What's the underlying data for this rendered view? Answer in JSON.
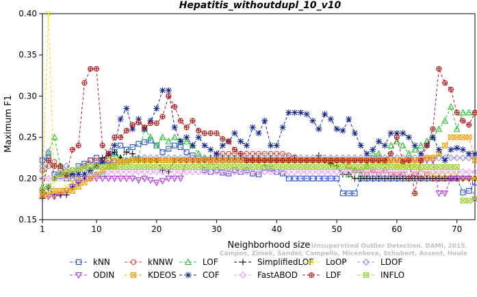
{
  "chart_data": {
    "type": "line",
    "title": "Hepatitis_withoutdupl_10_v10",
    "xlabel": "Neighborhood size",
    "ylabel": "Maximum F1",
    "xlim": [
      1,
      73
    ],
    "ylim": [
      0.15,
      0.4
    ],
    "x_ticks": [
      1,
      10,
      20,
      30,
      40,
      50,
      60,
      70
    ],
    "y_ticks": [
      "0.15",
      "0.20",
      "0.25",
      "0.30",
      "0.35",
      "0.40"
    ],
    "grid": false,
    "legend_position": "bottom",
    "credit": {
      "line1": "Unsupervised Outlier Detection. DAMI, 2015.",
      "line2": "Campos, Zimek, Sander, Campello, Micenkova, Schubert, Assent, Houle"
    },
    "series": [
      {
        "name": "kNN",
        "color": "#1f4fd0",
        "marker": "square",
        "dash": "4,3",
        "values": [
          0.222,
          0.225,
          0.205,
          0.203,
          0.208,
          0.203,
          0.215,
          0.218,
          0.222,
          0.225,
          0.222,
          0.222,
          0.232,
          0.24,
          0.235,
          0.238,
          0.242,
          0.244,
          0.246,
          0.24,
          0.232,
          0.236,
          0.24,
          0.238,
          0.232,
          0.228,
          0.222,
          0.21,
          0.208,
          0.21,
          0.207,
          0.206,
          0.21,
          0.208,
          0.21,
          0.206,
          0.205,
          0.213,
          0.212,
          0.208,
          0.206,
          0.2,
          0.2,
          0.2,
          0.2,
          0.2,
          0.2,
          0.2,
          0.2,
          0.2,
          0.182,
          0.182,
          0.182,
          0.2,
          0.2,
          0.2,
          0.2,
          0.2,
          0.2,
          0.2,
          0.2,
          0.2,
          0.2,
          0.2,
          0.2,
          0.2,
          0.2,
          0.2,
          0.2,
          0.2,
          0.183,
          0.185,
          0.195
        ]
      },
      {
        "name": "kNNW",
        "color": "#e53a2c",
        "marker": "circle",
        "dash": "4,3",
        "values": [
          0.21,
          0.215,
          0.22,
          0.21,
          0.2,
          0.205,
          0.21,
          0.215,
          0.222,
          0.222,
          0.222,
          0.222,
          0.222,
          0.222,
          0.222,
          0.222,
          0.222,
          0.222,
          0.222,
          0.222,
          0.222,
          0.222,
          0.222,
          0.222,
          0.222,
          0.222,
          0.222,
          0.222,
          0.222,
          0.228,
          0.23,
          0.23,
          0.23,
          0.23,
          0.23,
          0.23,
          0.23,
          0.23,
          0.23,
          0.23,
          0.23,
          0.228,
          0.226,
          0.222,
          0.222,
          0.222,
          0.222,
          0.222,
          0.222,
          0.222,
          0.222,
          0.215,
          0.21,
          0.21,
          0.205,
          0.21,
          0.205,
          0.21,
          0.205,
          0.205,
          0.205,
          0.2,
          0.205,
          0.2,
          0.205,
          0.2,
          0.2,
          0.2,
          0.2,
          0.2,
          0.2,
          0.2,
          0.2
        ]
      },
      {
        "name": "LOF",
        "color": "#22c02a",
        "marker": "triangle",
        "dash": "4,3",
        "values": [
          0.19,
          0.232,
          0.25,
          0.215,
          0.2,
          0.2,
          0.2,
          0.2,
          0.205,
          0.205,
          0.205,
          0.215,
          0.23,
          0.225,
          0.222,
          0.222,
          0.225,
          0.26,
          0.25,
          0.24,
          0.25,
          0.245,
          0.25,
          0.245,
          0.245,
          0.24,
          0.23,
          0.225,
          0.22,
          0.222,
          0.222,
          0.222,
          0.222,
          0.222,
          0.222,
          0.222,
          0.222,
          0.222,
          0.222,
          0.222,
          0.222,
          0.222,
          0.222,
          0.222,
          0.222,
          0.222,
          0.222,
          0.222,
          0.222,
          0.222,
          0.222,
          0.205,
          0.21,
          0.205,
          0.215,
          0.23,
          0.23,
          0.22,
          0.24,
          0.245,
          0.24,
          0.23,
          0.235,
          0.24,
          0.245,
          0.25,
          0.26,
          0.27,
          0.287,
          0.26,
          0.28,
          0.28,
          0.28
        ]
      },
      {
        "name": "SimplifiedLOF",
        "color": "#000000",
        "marker": "plus",
        "dash": "4,3",
        "values": [
          0.176,
          0.188,
          0.18,
          0.18,
          0.18,
          0.19,
          0.195,
          0.2,
          0.21,
          0.215,
          0.225,
          0.228,
          0.232,
          0.225,
          0.232,
          0.23,
          0.222,
          0.222,
          0.222,
          0.222,
          0.21,
          0.208,
          0.222,
          0.222,
          0.222,
          0.222,
          0.222,
          0.222,
          0.225,
          0.225,
          0.225,
          0.225,
          0.225,
          0.225,
          0.222,
          0.225,
          0.225,
          0.222,
          0.225,
          0.222,
          0.222,
          0.222,
          0.225,
          0.222,
          0.222,
          0.222,
          0.228,
          0.222,
          0.218,
          0.215,
          0.205,
          0.205,
          0.2,
          0.2,
          0.2,
          0.2,
          0.2,
          0.2,
          0.2,
          0.2,
          0.2,
          0.2,
          0.2,
          0.2,
          0.2,
          0.2,
          0.2,
          0.2,
          0.2,
          0.2,
          0.2,
          0.2,
          0.2
        ]
      },
      {
        "name": "LoOP",
        "color": "#f4dc00",
        "marker": "x",
        "dash": "4,3",
        "values": [
          0.185,
          0.4,
          0.178,
          0.182,
          0.19,
          0.195,
          0.2,
          0.205,
          0.21,
          0.215,
          0.22,
          0.225,
          0.222,
          0.222,
          0.222,
          0.222,
          0.222,
          0.222,
          0.222,
          0.222,
          0.222,
          0.222,
          0.222,
          0.222,
          0.222,
          0.222,
          0.222,
          0.222,
          0.222,
          0.222,
          0.222,
          0.222,
          0.222,
          0.222,
          0.222,
          0.222,
          0.222,
          0.222,
          0.222,
          0.222,
          0.222,
          0.222,
          0.222,
          0.222,
          0.222,
          0.222,
          0.222,
          0.222,
          0.222,
          0.222,
          0.222,
          0.222,
          0.222,
          0.222,
          0.22,
          0.22,
          0.22,
          0.22,
          0.22,
          0.215,
          0.215,
          0.215,
          0.215,
          0.21,
          0.205,
          0.205,
          0.205,
          0.205,
          0.205,
          0.205,
          0.2,
          0.2,
          0.2
        ]
      },
      {
        "name": "LDOF",
        "color": "#8c8ce0",
        "marker": "diamond",
        "dash": "4,3",
        "values": [
          0.215,
          0.232,
          0.205,
          0.21,
          0.215,
          0.21,
          0.21,
          0.21,
          0.215,
          0.22,
          0.218,
          0.218,
          0.22,
          0.22,
          0.222,
          0.225,
          0.225,
          0.225,
          0.225,
          0.225,
          0.225,
          0.225,
          0.225,
          0.225,
          0.225,
          0.225,
          0.225,
          0.225,
          0.225,
          0.225,
          0.225,
          0.225,
          0.225,
          0.225,
          0.225,
          0.225,
          0.225,
          0.225,
          0.225,
          0.225,
          0.225,
          0.225,
          0.225,
          0.225,
          0.225,
          0.225,
          0.225,
          0.225,
          0.225,
          0.225,
          0.225,
          0.225,
          0.225,
          0.225,
          0.225,
          0.225,
          0.225,
          0.225,
          0.225,
          0.225,
          0.225,
          0.225,
          0.225,
          0.225,
          0.225,
          0.225,
          0.225,
          0.225,
          0.225,
          0.225,
          0.225,
          0.225,
          0.225
        ]
      },
      {
        "name": "ODIN",
        "color": "#b030e0",
        "marker": "triangle-down",
        "dash": "4,3",
        "values": [
          0.18,
          0.178,
          0.178,
          0.18,
          0.185,
          0.19,
          0.195,
          0.2,
          0.2,
          0.2,
          0.2,
          0.2,
          0.2,
          0.2,
          0.2,
          0.2,
          0.198,
          0.2,
          0.198,
          0.195,
          0.197,
          0.2,
          0.2,
          0.2,
          0.222,
          0.222,
          0.222,
          0.222,
          0.222,
          0.222,
          0.222,
          0.222,
          0.222,
          0.222,
          0.222,
          0.222,
          0.222,
          0.222,
          0.222,
          0.222,
          0.222,
          0.222,
          0.222,
          0.222,
          0.222,
          0.222,
          0.222,
          0.222,
          0.222,
          0.222,
          0.222,
          0.222,
          0.222,
          0.222,
          0.222,
          0.222,
          0.222,
          0.222,
          0.222,
          0.222,
          0.222,
          0.222,
          0.222,
          0.222,
          0.222,
          0.222,
          0.182,
          0.182,
          0.2,
          0.2,
          0.2,
          0.2,
          0.175
        ]
      },
      {
        "name": "KDEOS",
        "color": "#f0a000",
        "marker": "square-x",
        "dash": "4,3",
        "values": [
          0.18,
          0.18,
          0.185,
          0.185,
          0.185,
          0.185,
          0.19,
          0.195,
          0.2,
          0.205,
          0.21,
          0.215,
          0.215,
          0.22,
          0.22,
          0.222,
          0.222,
          0.222,
          0.222,
          0.222,
          0.222,
          0.222,
          0.222,
          0.222,
          0.222,
          0.222,
          0.222,
          0.222,
          0.222,
          0.222,
          0.222,
          0.222,
          0.222,
          0.222,
          0.222,
          0.222,
          0.222,
          0.222,
          0.222,
          0.222,
          0.222,
          0.222,
          0.222,
          0.222,
          0.222,
          0.222,
          0.222,
          0.222,
          0.222,
          0.222,
          0.222,
          0.222,
          0.222,
          0.222,
          0.222,
          0.222,
          0.222,
          0.222,
          0.222,
          0.222,
          0.222,
          0.222,
          0.222,
          0.222,
          0.225,
          0.225,
          0.23,
          0.24,
          0.25,
          0.25,
          0.25,
          0.25,
          0.222
        ]
      },
      {
        "name": "COF",
        "color": "#10238c",
        "marker": "star",
        "dash": "4,3",
        "values": [
          0.185,
          0.19,
          0.2,
          0.205,
          0.205,
          0.205,
          0.205,
          0.205,
          0.21,
          0.215,
          0.22,
          0.23,
          0.24,
          0.272,
          0.285,
          0.26,
          0.272,
          0.26,
          0.27,
          0.285,
          0.307,
          0.307,
          0.262,
          0.245,
          0.25,
          0.24,
          0.25,
          0.24,
          0.235,
          0.23,
          0.24,
          0.245,
          0.255,
          0.245,
          0.24,
          0.262,
          0.255,
          0.27,
          0.24,
          0.24,
          0.262,
          0.28,
          0.28,
          0.28,
          0.278,
          0.27,
          0.26,
          0.278,
          0.272,
          0.26,
          0.258,
          0.272,
          0.255,
          0.24,
          0.23,
          0.235,
          0.245,
          0.24,
          0.255,
          0.255,
          0.255,
          0.25,
          0.24,
          0.23,
          0.24,
          0.25,
          0.235,
          0.222,
          0.235,
          0.237,
          0.235,
          0.23,
          0.23
        ]
      },
      {
        "name": "FastABOD",
        "color": "#ee9aee",
        "marker": "diamond",
        "dash": "4,3",
        "values": [
          0.2,
          0.2,
          0.2,
          0.2,
          0.2,
          0.2,
          0.2,
          0.2,
          0.205,
          0.205,
          0.205,
          0.208,
          0.208,
          0.208,
          0.208,
          0.208,
          0.208,
          0.208,
          0.208,
          0.208,
          0.208,
          0.208,
          0.208,
          0.208,
          0.208,
          0.208,
          0.208,
          0.208,
          0.208,
          0.208,
          0.208,
          0.208,
          0.208,
          0.208,
          0.208,
          0.208,
          0.208,
          0.208,
          0.208,
          0.208,
          0.208,
          0.208,
          0.208,
          0.208,
          0.208,
          0.208,
          0.208,
          0.208,
          0.208,
          0.208,
          0.208,
          0.208,
          0.208,
          0.208,
          0.208,
          0.208,
          0.208,
          0.208,
          0.208,
          0.208,
          0.208,
          0.208,
          0.208,
          0.208,
          0.208,
          0.208,
          0.208,
          0.208,
          0.208,
          0.208,
          0.208,
          0.208,
          0.208
        ]
      },
      {
        "name": "LDF",
        "color": "#b01818",
        "marker": "circle-plus",
        "dash": "4,3",
        "values": [
          0.185,
          0.222,
          0.215,
          0.215,
          0.205,
          0.235,
          0.24,
          0.316,
          0.333,
          0.333,
          0.24,
          0.23,
          0.25,
          0.25,
          0.258,
          0.265,
          0.268,
          0.262,
          0.267,
          0.267,
          0.275,
          0.3,
          0.287,
          0.27,
          0.262,
          0.27,
          0.258,
          0.255,
          0.255,
          0.255,
          0.248,
          0.245,
          0.235,
          0.23,
          0.222,
          0.222,
          0.222,
          0.222,
          0.222,
          0.222,
          0.222,
          0.222,
          0.222,
          0.222,
          0.222,
          0.222,
          0.222,
          0.222,
          0.222,
          0.222,
          0.222,
          0.222,
          0.222,
          0.222,
          0.222,
          0.222,
          0.222,
          0.222,
          0.23,
          0.25,
          0.22,
          0.222,
          0.182,
          0.222,
          0.24,
          0.26,
          0.333,
          0.316,
          0.308,
          0.28,
          0.27,
          0.265,
          0.28
        ]
      },
      {
        "name": "INFLO",
        "color": "#9cd030",
        "marker": "square-x",
        "dash": "4,3",
        "values": [
          0.185,
          0.19,
          0.2,
          0.205,
          0.208,
          0.21,
          0.212,
          0.213,
          0.214,
          0.214,
          0.214,
          0.214,
          0.214,
          0.214,
          0.214,
          0.214,
          0.214,
          0.214,
          0.214,
          0.214,
          0.214,
          0.214,
          0.214,
          0.214,
          0.214,
          0.214,
          0.214,
          0.214,
          0.214,
          0.214,
          0.214,
          0.214,
          0.214,
          0.214,
          0.214,
          0.214,
          0.214,
          0.214,
          0.214,
          0.214,
          0.214,
          0.214,
          0.214,
          0.214,
          0.214,
          0.214,
          0.214,
          0.214,
          0.214,
          0.214,
          0.214,
          0.214,
          0.214,
          0.214,
          0.214,
          0.214,
          0.214,
          0.214,
          0.214,
          0.214,
          0.214,
          0.214,
          0.214,
          0.214,
          0.214,
          0.214,
          0.214,
          0.214,
          0.214,
          0.214,
          0.173,
          0.173,
          0.175
        ]
      }
    ]
  }
}
